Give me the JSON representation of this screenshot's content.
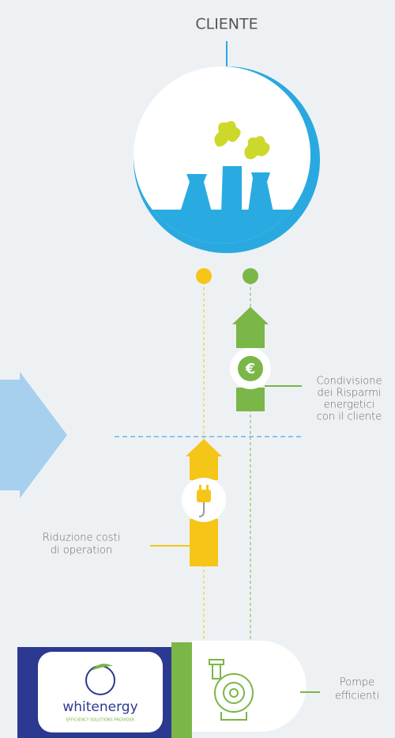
{
  "title": "CLIENTE",
  "savings_label": [
    "Condivisione",
    "dei Risparmi",
    "energetici",
    "con il cliente"
  ],
  "euro_icon": "€",
  "cost_label": [
    "Riduzione costi",
    "di operation"
  ],
  "pumps_label": [
    "Pompe",
    "efficienti"
  ],
  "logo": {
    "name": "whitenergy",
    "tagline": "EFFICIENCY SOLUTIONS PROVIDER"
  }
}
